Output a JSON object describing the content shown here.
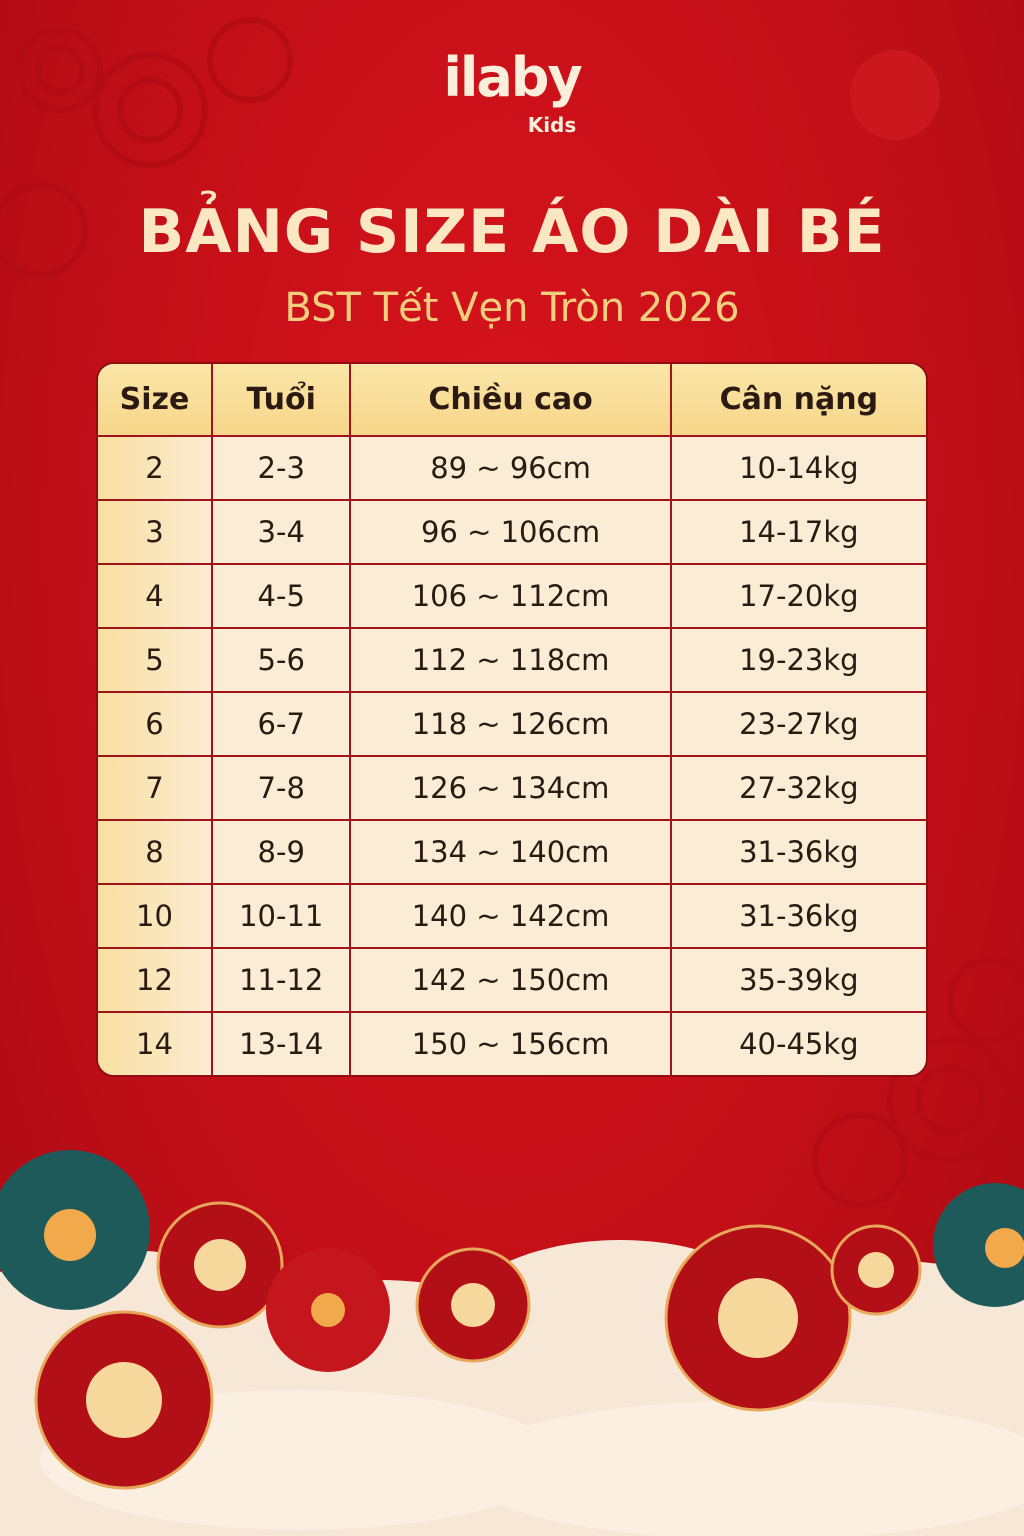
{
  "logo": {
    "brand": "ilaby",
    "sub": "Kids"
  },
  "title": "BẢNG SIZE ÁO DÀI BÉ",
  "subtitle": "BST Tết Vẹn Tròn 2026",
  "table": {
    "headers": [
      "Size",
      "Tuổi",
      "Chiều cao",
      "Cân nặng"
    ],
    "rows": [
      [
        "2",
        "2-3",
        "89 ~ 96cm",
        "10-14kg"
      ],
      [
        "3",
        "3-4",
        "96 ~ 106cm",
        "14-17kg"
      ],
      [
        "4",
        "4-5",
        "106 ~ 112cm",
        "17-20kg"
      ],
      [
        "5",
        "5-6",
        "112 ~ 118cm",
        "19-23kg"
      ],
      [
        "6",
        "6-7",
        "118 ~ 126cm",
        "23-27kg"
      ],
      [
        "7",
        "7-8",
        "126 ~ 134cm",
        "27-32kg"
      ],
      [
        "8",
        "8-9",
        "134 ~ 140cm",
        "31-36kg"
      ],
      [
        "10",
        "10-11",
        "140 ~ 142cm",
        "31-36kg"
      ],
      [
        "12",
        "11-12",
        "142 ~ 150cm",
        "35-39kg"
      ],
      [
        "14",
        "13-14",
        "150 ~ 156cm",
        "40-45kg"
      ]
    ]
  },
  "colors": {
    "background": "#c30f18",
    "header": "#f6d68a",
    "cell": "#fbecd6",
    "title": "#fbe7c2",
    "subtitle": "#f2cf7e"
  }
}
